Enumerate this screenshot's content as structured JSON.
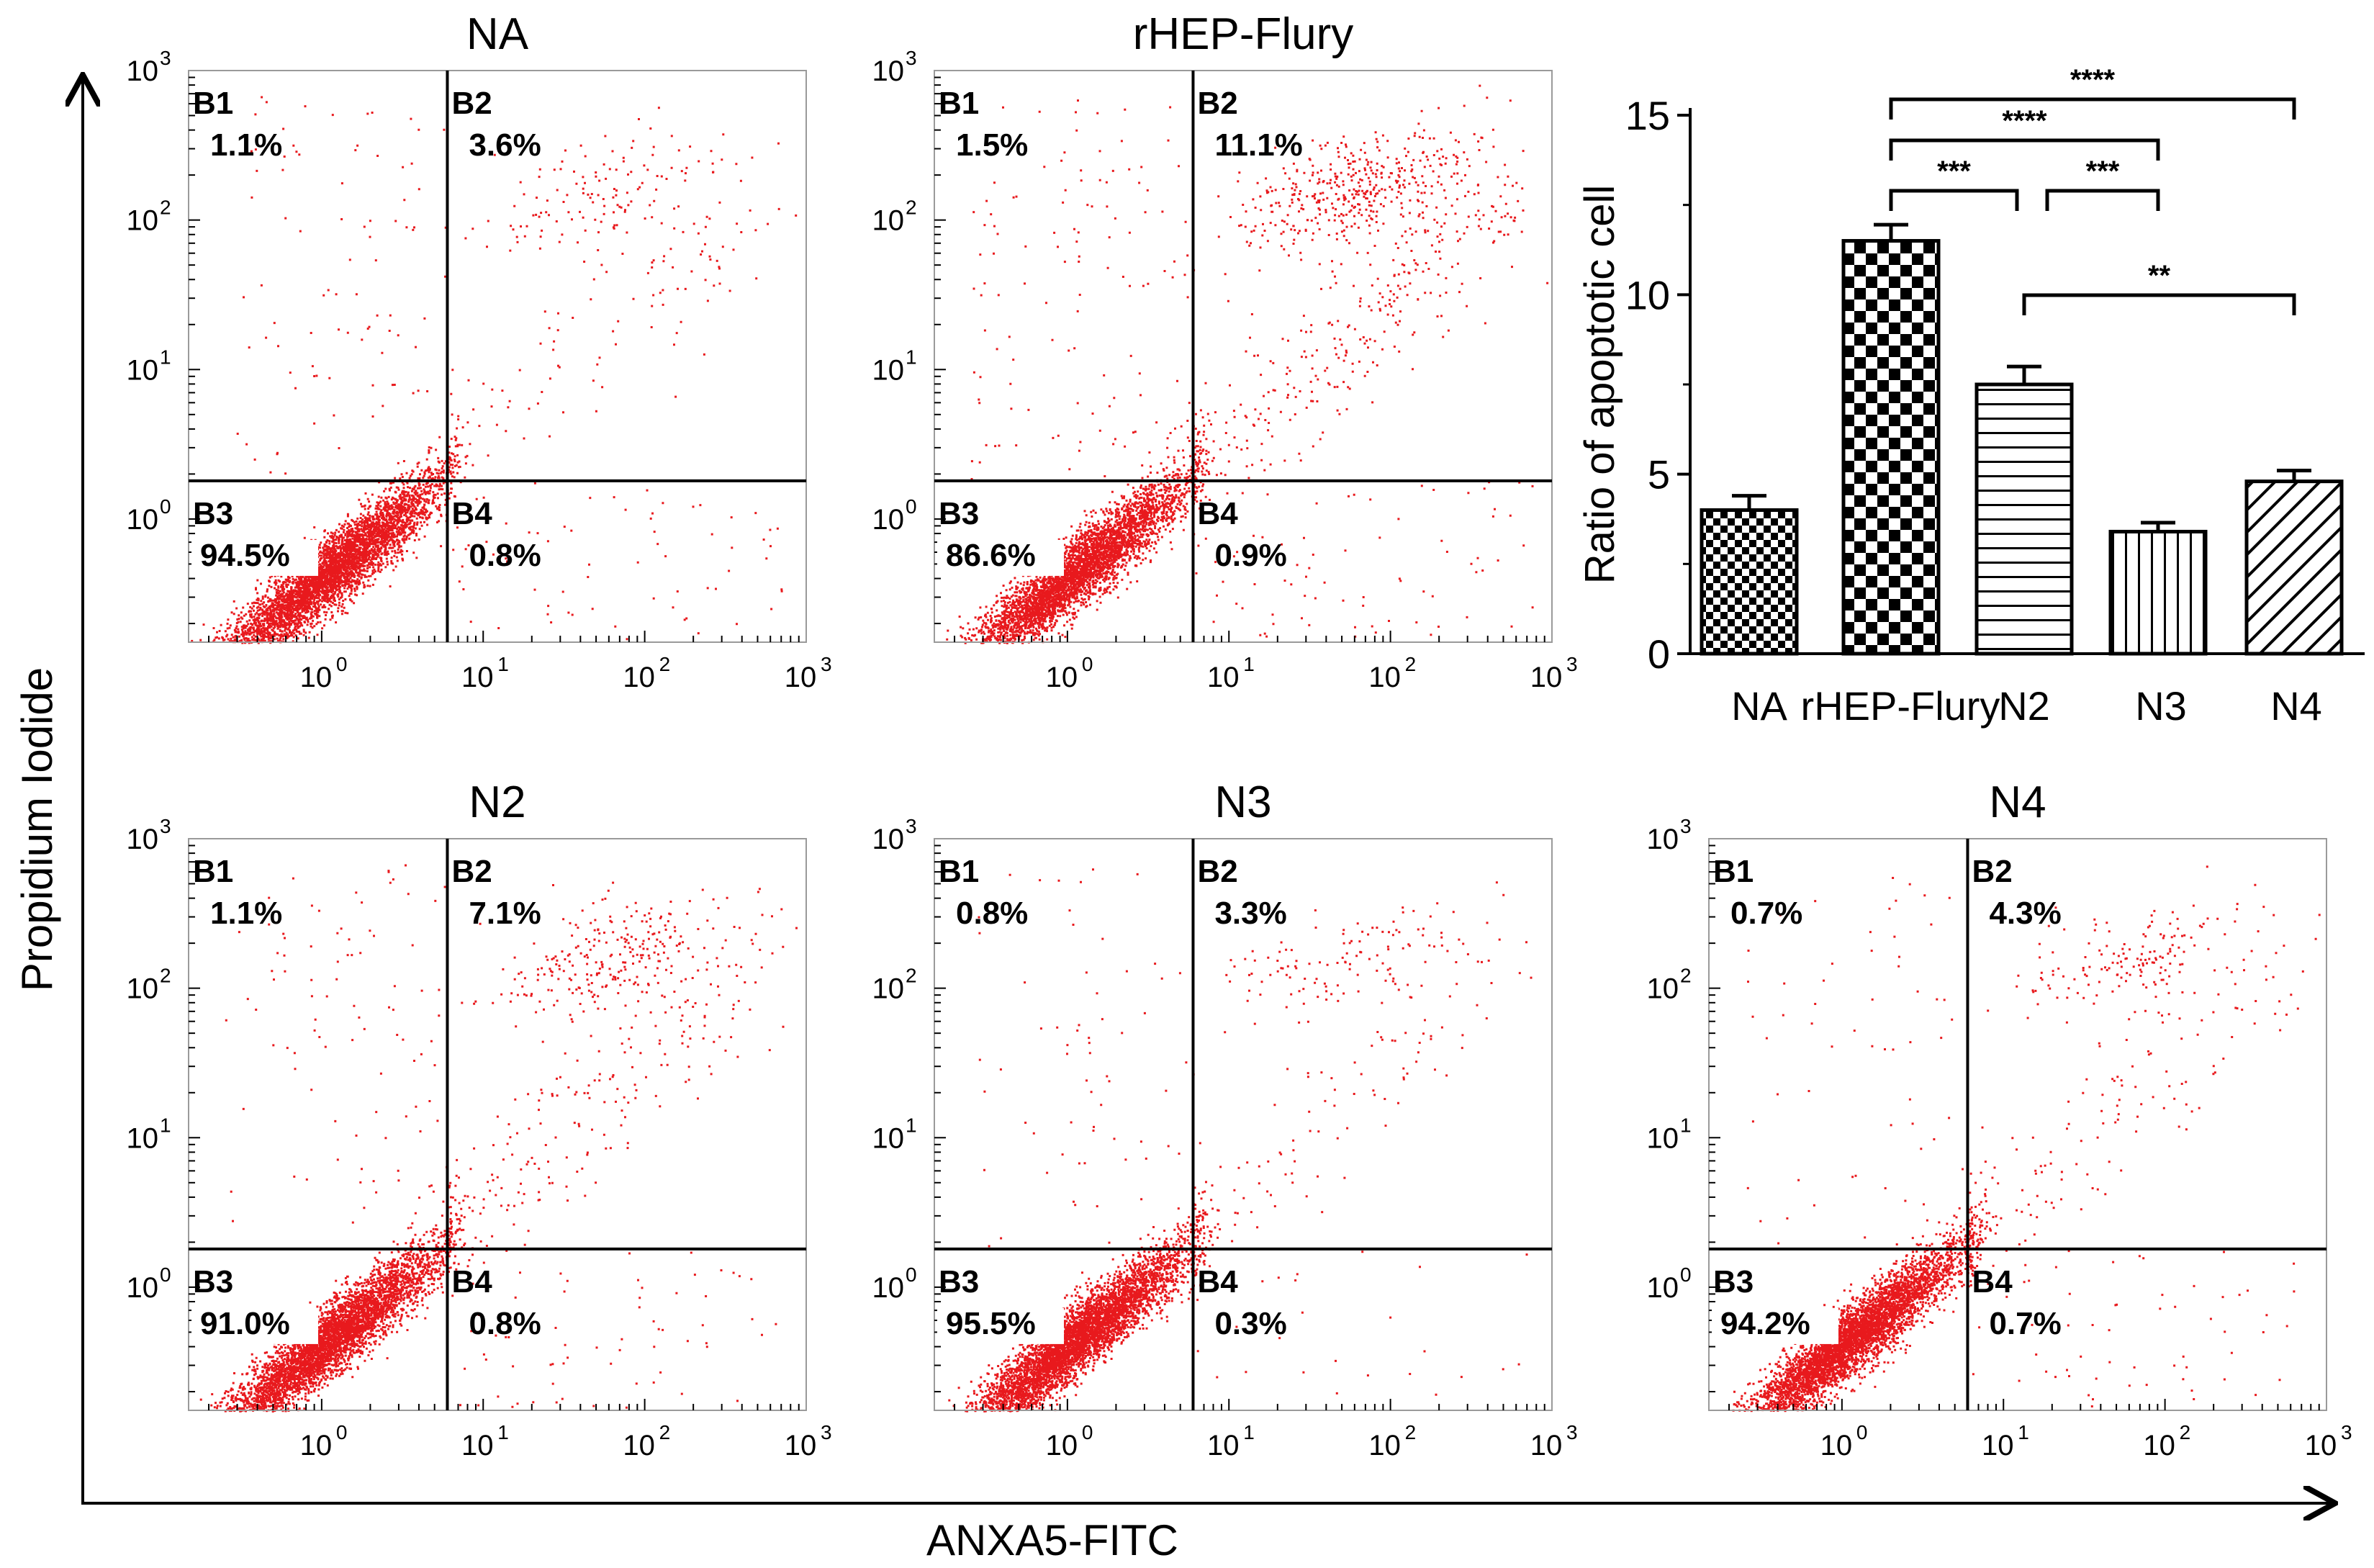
{
  "figure": {
    "x_axis_label": "ANXA5-FITC",
    "y_axis_label": "Propidium Iodide",
    "point_color": "#e8191d",
    "line_color": "#000000"
  },
  "chart_data": [
    {
      "type": "scatter",
      "title": "NA",
      "xlim": [
        0.15,
        1000
      ],
      "ylim": [
        0.15,
        1000
      ],
      "x_scale": "log",
      "y_scale": "log",
      "gate": {
        "x": 6,
        "y": 1.8
      },
      "x_ticks": [
        "10",
        "10",
        "10",
        "10"
      ],
      "x_tick_exponents": [
        "0",
        "1",
        "2",
        "3"
      ],
      "y_ticks": [
        "10",
        "10",
        "10",
        "10"
      ],
      "y_tick_exponents": [
        "0",
        "1",
        "2",
        "3"
      ],
      "quadrants": [
        {
          "label": "B1",
          "percent": "1.1%"
        },
        {
          "label": "B2",
          "percent": "3.6%"
        },
        {
          "label": "B3",
          "percent": "94.5%"
        },
        {
          "label": "B4",
          "percent": "0.8%"
        }
      ]
    },
    {
      "type": "scatter",
      "title": "rHEP-Flury",
      "xlim": [
        0.15,
        1000
      ],
      "ylim": [
        0.15,
        1000
      ],
      "x_scale": "log",
      "y_scale": "log",
      "gate": {
        "x": 6,
        "y": 1.8
      },
      "x_ticks": [
        "10",
        "10",
        "10",
        "10"
      ],
      "x_tick_exponents": [
        "0",
        "1",
        "2",
        "3"
      ],
      "y_ticks": [
        "10",
        "10",
        "10",
        "10"
      ],
      "y_tick_exponents": [
        "0",
        "1",
        "2",
        "3"
      ],
      "quadrants": [
        {
          "label": "B1",
          "percent": "1.5%"
        },
        {
          "label": "B2",
          "percent": "11.1%"
        },
        {
          "label": "B3",
          "percent": "86.6%"
        },
        {
          "label": "B4",
          "percent": "0.9%"
        }
      ]
    },
    {
      "type": "bar",
      "title": "",
      "categories": [
        "NA",
        "rHEP-Flury",
        "N2",
        "N3",
        "N4"
      ],
      "values": [
        4.0,
        11.5,
        7.5,
        3.4,
        4.8
      ],
      "errors": [
        0.4,
        0.45,
        0.5,
        0.25,
        0.3
      ],
      "patterns": [
        "small-checker",
        "large-checker",
        "horizontal-lines",
        "vertical-lines",
        "diagonal-lines"
      ],
      "ylabel": "Ratio of apoptotic cell",
      "xlabel": "",
      "ylim": [
        0,
        15
      ],
      "y_ticks": [
        "0",
        "5",
        "10",
        "15"
      ],
      "significance": [
        {
          "from": 1,
          "to": 4,
          "label": "****"
        },
        {
          "from": 1,
          "to": 3,
          "label": "****"
        },
        {
          "from": 1,
          "to": 2,
          "label": "***"
        },
        {
          "from": 2,
          "to": 3,
          "label": "***"
        },
        {
          "from": 2,
          "to": 4,
          "label": "**"
        }
      ]
    },
    {
      "type": "scatter",
      "title": "N2",
      "xlim": [
        0.15,
        1000
      ],
      "ylim": [
        0.15,
        1000
      ],
      "x_scale": "log",
      "y_scale": "log",
      "gate": {
        "x": 6,
        "y": 1.8
      },
      "x_ticks": [
        "10",
        "10",
        "10",
        "10"
      ],
      "x_tick_exponents": [
        "0",
        "1",
        "2",
        "3"
      ],
      "y_ticks": [
        "10",
        "10",
        "10",
        "10"
      ],
      "y_tick_exponents": [
        "0",
        "1",
        "2",
        "3"
      ],
      "quadrants": [
        {
          "label": "B1",
          "percent": "1.1%"
        },
        {
          "label": "B2",
          "percent": "7.1%"
        },
        {
          "label": "B3",
          "percent": "91.0%"
        },
        {
          "label": "B4",
          "percent": "0.8%"
        }
      ]
    },
    {
      "type": "scatter",
      "title": "N3",
      "xlim": [
        0.15,
        1000
      ],
      "ylim": [
        0.15,
        1000
      ],
      "x_scale": "log",
      "y_scale": "log",
      "gate": {
        "x": 6,
        "y": 1.8
      },
      "x_ticks": [
        "10",
        "10",
        "10",
        "10"
      ],
      "x_tick_exponents": [
        "0",
        "1",
        "2",
        "3"
      ],
      "y_ticks": [
        "10",
        "10",
        "10",
        "10"
      ],
      "y_tick_exponents": [
        "0",
        "1",
        "2",
        "3"
      ],
      "quadrants": [
        {
          "label": "B1",
          "percent": "0.8%"
        },
        {
          "label": "B2",
          "percent": "3.3%"
        },
        {
          "label": "B3",
          "percent": "95.5%"
        },
        {
          "label": "B4",
          "percent": "0.3%"
        }
      ]
    },
    {
      "type": "scatter",
      "title": "N4",
      "xlim": [
        0.15,
        1000
      ],
      "ylim": [
        0.15,
        1000
      ],
      "x_scale": "log",
      "y_scale": "log",
      "gate": {
        "x": 6,
        "y": 1.8
      },
      "x_ticks": [
        "10",
        "10",
        "10",
        "10"
      ],
      "x_tick_exponents": [
        "0",
        "1",
        "2",
        "3"
      ],
      "y_ticks": [
        "10",
        "10",
        "10",
        "10"
      ],
      "y_tick_exponents": [
        "0",
        "1",
        "2",
        "3"
      ],
      "quadrants": [
        {
          "label": "B1",
          "percent": "0.7%"
        },
        {
          "label": "B2",
          "percent": "4.3%"
        },
        {
          "label": "B3",
          "percent": "94.2%"
        },
        {
          "label": "B4",
          "percent": "0.7%"
        }
      ]
    }
  ]
}
